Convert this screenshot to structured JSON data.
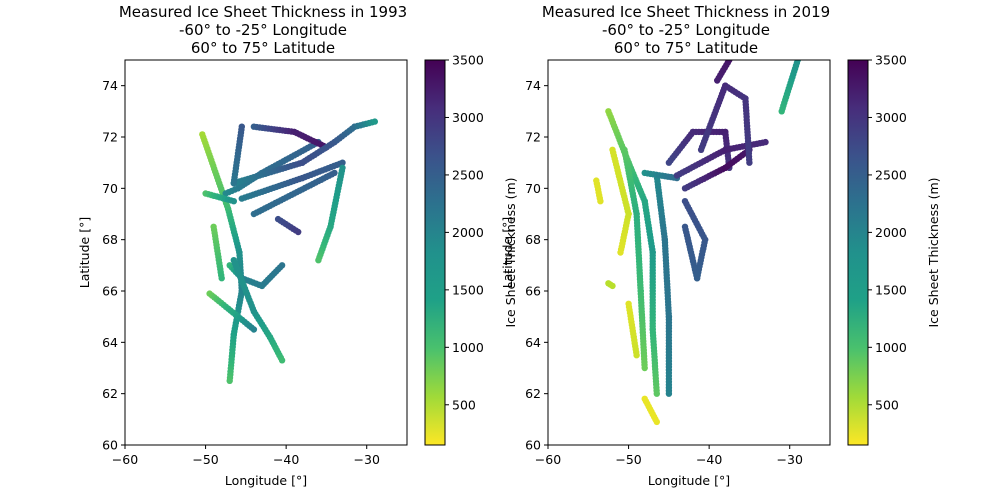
{
  "chart_data": [
    {
      "type": "scatter",
      "title_lines": [
        "Measured Ice Sheet Thickness in 1993",
        "-60° to -25° Longitude",
        "60° to 75° Latitude"
      ],
      "xlabel": "Longitude [°]",
      "ylabel": "Latitude [°]",
      "xlim": [
        -60,
        -25
      ],
      "ylim": [
        60,
        75
      ],
      "xticks": [
        -60,
        -50,
        -40,
        -30
      ],
      "yticks": [
        60,
        62,
        64,
        66,
        68,
        70,
        72,
        74
      ],
      "colorbar": {
        "label": "Ice Sheet Thickness (m)",
        "range": [
          150,
          3500
        ],
        "ticks": [
          500,
          1000,
          1500,
          2000,
          2500,
          3000,
          3500
        ],
        "colormap": "viridis_r"
      },
      "tracks": [
        {
          "points": [
            [
              -50.4,
              72.1
            ],
            [
              -47.2,
              69.2
            ],
            [
              -45.8,
              67.5
            ],
            [
              -45.5,
              66.0
            ],
            [
              -46.5,
              64.3
            ],
            [
              -47.0,
              62.5
            ]
          ],
          "thickness": [
            600,
            1200,
            1800,
            2000,
            1600,
            1100
          ]
        },
        {
          "points": [
            [
              -47.5,
              69.8
            ],
            [
              -46.0,
              70.0
            ],
            [
              -43.0,
              70.6
            ],
            [
              -36.0,
              71.8
            ]
          ],
          "thickness": [
            1900,
            2100,
            2300,
            2500
          ]
        },
        {
          "points": [
            [
              -44.0,
              72.4
            ],
            [
              -39.0,
              72.2
            ],
            [
              -35.0,
              71.6
            ]
          ],
          "thickness": [
            2500,
            3200,
            3300
          ]
        },
        {
          "points": [
            [
              -46.5,
              70.2
            ],
            [
              -38.0,
              71.0
            ],
            [
              -34.0,
              71.8
            ],
            [
              -31.5,
              72.4
            ],
            [
              -29.0,
              72.6
            ]
          ],
          "thickness": [
            2000,
            2700,
            2600,
            2300,
            1700
          ]
        },
        {
          "points": [
            [
              -45.5,
              69.6
            ],
            [
              -38.0,
              70.4
            ],
            [
              -33.0,
              71.0
            ]
          ],
          "thickness": [
            2100,
            2600,
            2500
          ]
        },
        {
          "points": [
            [
              -44.0,
              69.0
            ],
            [
              -34.0,
              70.6
            ]
          ],
          "thickness": [
            2300,
            2500
          ]
        },
        {
          "points": [
            [
              -47.0,
              67.0
            ],
            [
              -45.5,
              66.5
            ],
            [
              -43.0,
              66.2
            ],
            [
              -40.5,
              67.0
            ]
          ],
          "thickness": [
            1300,
            2000,
            2100,
            2200
          ]
        },
        {
          "points": [
            [
              -46.5,
              67.2
            ],
            [
              -44.0,
              65.2
            ],
            [
              -42.0,
              64.2
            ],
            [
              -40.5,
              63.3
            ]
          ],
          "thickness": [
            1800,
            1800,
            1500,
            1200
          ]
        },
        {
          "points": [
            [
              -45.5,
              72.4
            ],
            [
              -46.5,
              70.2
            ]
          ],
          "thickness": [
            2600,
            2200
          ]
        },
        {
          "points": [
            [
              -33.0,
              70.8
            ],
            [
              -34.5,
              68.5
            ],
            [
              -36.0,
              67.2
            ]
          ],
          "thickness": [
            1800,
            1500,
            1100
          ]
        },
        {
          "points": [
            [
              -50.0,
              69.8
            ],
            [
              -46.5,
              69.5
            ]
          ],
          "thickness": [
            1100,
            1800
          ]
        },
        {
          "points": [
            [
              -49.0,
              68.5
            ],
            [
              -48.0,
              66.5
            ]
          ],
          "thickness": [
            900,
            1300
          ]
        },
        {
          "points": [
            [
              -49.5,
              65.9
            ],
            [
              -44.0,
              64.5
            ]
          ],
          "thickness": [
            900,
            2000
          ]
        },
        {
          "points": [
            [
              -41.0,
              68.8
            ],
            [
              -38.5,
              68.3
            ]
          ],
          "thickness": [
            2700,
            2900
          ]
        }
      ]
    },
    {
      "type": "scatter",
      "title_lines": [
        "Measured Ice Sheet Thickness in 2019",
        "-60° to -25° Longitude",
        "60° to 75° Latitude"
      ],
      "xlabel": "Longitude [°]",
      "ylabel": "Latitude [°]",
      "xlim": [
        -60,
        -25
      ],
      "ylim": [
        60,
        75
      ],
      "xticks": [
        -60,
        -50,
        -40,
        -30
      ],
      "yticks": [
        60,
        62,
        64,
        66,
        68,
        70,
        72,
        74
      ],
      "colorbar": {
        "label": "Ice Sheet Thickness (m)",
        "range": [
          150,
          3500
        ],
        "ticks": [
          500,
          1000,
          1500,
          2000,
          2500,
          3000,
          3500
        ],
        "colormap": "viridis_r"
      },
      "tracks": [
        {
          "points": [
            [
              -52.5,
              73.0
            ],
            [
              -50.0,
              71.0
            ],
            [
              -48.0,
              69.5
            ],
            [
              -47.0,
              67.5
            ],
            [
              -47.0,
              64.5
            ],
            [
              -46.5,
              62.0
            ]
          ],
          "thickness": [
            700,
            1100,
            1500,
            1700,
            1300,
            1000
          ]
        },
        {
          "points": [
            [
              -50.5,
              71.5
            ],
            [
              -49.0,
              69.0
            ],
            [
              -48.5,
              66.0
            ],
            [
              -48.0,
              63.0
            ]
          ],
          "thickness": [
            1000,
            1400,
            1200,
            900
          ]
        },
        {
          "points": [
            [
              -46.5,
              70.5
            ],
            [
              -45.5,
              68.0
            ],
            [
              -45.0,
              65.0
            ],
            [
              -45.0,
              62.0
            ]
          ],
          "thickness": [
            1900,
            2200,
            2200,
            2000
          ]
        },
        {
          "points": [
            [
              -48.0,
              70.6
            ],
            [
              -44.0,
              70.4
            ]
          ],
          "thickness": [
            1800,
            2300
          ]
        },
        {
          "points": [
            [
              -45.0,
              71.0
            ],
            [
              -42.0,
              72.2
            ],
            [
              -38.0,
              72.2
            ],
            [
              -37.5,
              70.8
            ]
          ],
          "thickness": [
            2800,
            3100,
            3200,
            3000
          ]
        },
        {
          "points": [
            [
              -44.0,
              70.5
            ],
            [
              -38.0,
              71.5
            ],
            [
              -33.0,
              71.8
            ]
          ],
          "thickness": [
            2900,
            3200,
            3100
          ]
        },
        {
          "points": [
            [
              -43.0,
              70.0
            ],
            [
              -38.0,
              70.8
            ],
            [
              -35.0,
              71.5
            ]
          ],
          "thickness": [
            2900,
            3400,
            3300
          ]
        },
        {
          "points": [
            [
              -43.0,
              69.5
            ],
            [
              -40.5,
              68.0
            ],
            [
              -41.5,
              66.5
            ],
            [
              -43.0,
              68.5
            ]
          ],
          "thickness": [
            2700,
            2600,
            2500,
            2600
          ]
        },
        {
          "points": [
            [
              -41.0,
              71.5
            ],
            [
              -38.0,
              74.0
            ],
            [
              -35.5,
              73.5
            ],
            [
              -35.0,
              71.0
            ]
          ],
          "thickness": [
            2900,
            3100,
            3000,
            2900
          ]
        },
        {
          "points": [
            [
              -39.0,
              74.2
            ],
            [
              -37.5,
              75.0
            ]
          ],
          "thickness": [
            3200,
            3300
          ]
        },
        {
          "points": [
            [
              -31.0,
              73.0
            ],
            [
              -29.0,
              75.0
            ]
          ],
          "thickness": [
            1300,
            1800
          ]
        },
        {
          "points": [
            [
              -54.0,
              70.3
            ],
            [
              -53.5,
              69.5
            ]
          ],
          "thickness": [
            300,
            300
          ]
        },
        {
          "points": [
            [
              -52.0,
              71.5
            ],
            [
              -50.0,
              69.0
            ],
            [
              -51.0,
              67.5
            ]
          ],
          "thickness": [
            350,
            400,
            300
          ]
        },
        {
          "points": [
            [
              -50.0,
              65.5
            ],
            [
              -49.0,
              63.5
            ]
          ],
          "thickness": [
            300,
            400
          ]
        },
        {
          "points": [
            [
              -48.0,
              61.8
            ],
            [
              -46.5,
              60.9
            ]
          ],
          "thickness": [
            250,
            250
          ]
        },
        {
          "points": [
            [
              -52.5,
              66.3
            ],
            [
              -52.0,
              66.2
            ]
          ],
          "thickness": [
            500,
            500
          ]
        }
      ]
    }
  ]
}
